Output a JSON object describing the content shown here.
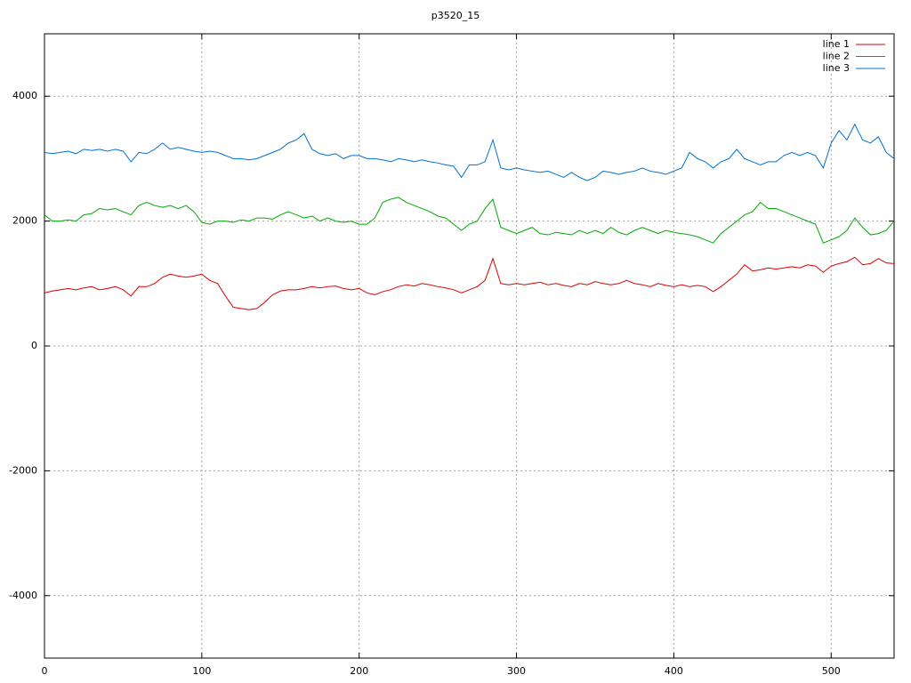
{
  "chart_data": {
    "type": "line",
    "title": "p3520_15",
    "legend": "top-right",
    "grid": true,
    "xlim": [
      0,
      540
    ],
    "ylim": [
      -5000,
      5000
    ],
    "xticks": [
      0,
      100,
      200,
      300,
      400,
      500
    ],
    "yticks": [
      -4000,
      -2000,
      0,
      2000,
      4000
    ],
    "x": [
      0,
      5,
      10,
      15,
      20,
      25,
      30,
      35,
      40,
      45,
      50,
      55,
      60,
      65,
      70,
      75,
      80,
      85,
      90,
      95,
      100,
      105,
      110,
      115,
      120,
      125,
      130,
      135,
      140,
      145,
      150,
      155,
      160,
      165,
      170,
      175,
      180,
      185,
      190,
      195,
      200,
      205,
      210,
      215,
      220,
      225,
      230,
      235,
      240,
      245,
      250,
      255,
      260,
      265,
      270,
      275,
      280,
      285,
      290,
      295,
      300,
      305,
      310,
      315,
      320,
      325,
      330,
      335,
      340,
      345,
      350,
      355,
      360,
      365,
      370,
      375,
      380,
      385,
      390,
      395,
      400,
      405,
      410,
      415,
      420,
      425,
      430,
      435,
      440,
      445,
      450,
      455,
      460,
      465,
      470,
      475,
      480,
      485,
      490,
      495,
      500,
      505,
      510,
      515,
      520,
      525,
      530,
      535,
      540
    ],
    "series": [
      {
        "name": "line 1",
        "color": "#dd0000",
        "values": [
          850,
          880,
          900,
          920,
          900,
          930,
          950,
          900,
          920,
          950,
          900,
          800,
          950,
          950,
          1000,
          1100,
          1150,
          1120,
          1100,
          1120,
          1150,
          1050,
          1000,
          800,
          620,
          600,
          580,
          600,
          700,
          820,
          880,
          900,
          900,
          920,
          950,
          930,
          950,
          960,
          920,
          900,
          920,
          850,
          820,
          870,
          900,
          950,
          980,
          960,
          1000,
          980,
          950,
          930,
          900,
          850,
          900,
          950,
          1050,
          1400,
          1000,
          980,
          1000,
          980,
          1000,
          1020,
          980,
          1000,
          970,
          950,
          1000,
          980,
          1030,
          1000,
          980,
          1000,
          1050,
          1000,
          980,
          950,
          1000,
          970,
          950,
          980,
          950,
          970,
          950,
          870,
          950,
          1050,
          1150,
          1300,
          1200,
          1220,
          1250,
          1230,
          1250,
          1270,
          1250,
          1300,
          1280,
          1180,
          1280,
          1320,
          1350,
          1420,
          1300,
          1320,
          1400,
          1330,
          1320
        ]
      },
      {
        "name": "line 2",
        "color": "#00aa00",
        "values": [
          2100,
          2000,
          2000,
          2020,
          2000,
          2100,
          2120,
          2200,
          2180,
          2200,
          2150,
          2100,
          2250,
          2300,
          2250,
          2220,
          2250,
          2200,
          2250,
          2150,
          1980,
          1950,
          2000,
          2000,
          1980,
          2020,
          2000,
          2050,
          2050,
          2030,
          2100,
          2150,
          2100,
          2050,
          2080,
          2000,
          2050,
          2000,
          1980,
          2000,
          1950,
          1950,
          2050,
          2300,
          2350,
          2380,
          2300,
          2250,
          2200,
          2150,
          2080,
          2050,
          1950,
          1850,
          1950,
          2000,
          2200,
          2350,
          1900,
          1850,
          1800,
          1850,
          1900,
          1800,
          1780,
          1820,
          1800,
          1780,
          1850,
          1800,
          1850,
          1800,
          1900,
          1820,
          1780,
          1850,
          1900,
          1850,
          1800,
          1850,
          1820,
          1800,
          1780,
          1750,
          1700,
          1650,
          1800,
          1900,
          2000,
          2100,
          2150,
          2300,
          2200,
          2200,
          2150,
          2100,
          2050,
          2000,
          1950,
          1650,
          1700,
          1750,
          1850,
          2050,
          1900,
          1780,
          1800,
          1850,
          2000
        ]
      },
      {
        "name": "line 3",
        "color": "#0070d0",
        "values": [
          3100,
          3080,
          3100,
          3120,
          3080,
          3150,
          3130,
          3150,
          3120,
          3150,
          3120,
          2950,
          3100,
          3080,
          3150,
          3250,
          3150,
          3180,
          3150,
          3120,
          3100,
          3120,
          3100,
          3050,
          3000,
          3000,
          2980,
          3000,
          3050,
          3100,
          3150,
          3250,
          3300,
          3400,
          3150,
          3080,
          3050,
          3080,
          3000,
          3050,
          3050,
          3000,
          3000,
          2980,
          2950,
          3000,
          2980,
          2950,
          2980,
          2950,
          2930,
          2900,
          2880,
          2700,
          2900,
          2900,
          2950,
          3300,
          2850,
          2820,
          2850,
          2820,
          2800,
          2780,
          2800,
          2750,
          2700,
          2780,
          2700,
          2650,
          2700,
          2800,
          2780,
          2750,
          2780,
          2800,
          2850,
          2800,
          2780,
          2750,
          2800,
          2850,
          3100,
          3000,
          2950,
          2850,
          2950,
          3000,
          3150,
          3000,
          2950,
          2900,
          2950,
          2950,
          3050,
          3100,
          3050,
          3100,
          3050,
          2850,
          3250,
          3450,
          3300,
          3550,
          3300,
          3250,
          3350,
          3100,
          3000
        ]
      }
    ]
  }
}
